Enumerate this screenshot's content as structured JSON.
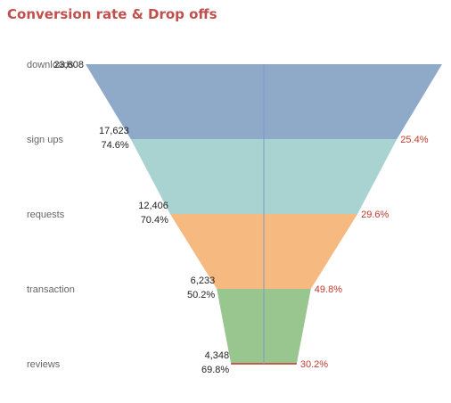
{
  "chart_data": {
    "type": "funnel",
    "title": "Conversion rate & Drop offs",
    "stages": [
      {
        "name": "downloads",
        "value": 23608,
        "value_label": "23,608",
        "conversion": "",
        "drop_off": ""
      },
      {
        "name": "sign ups",
        "value": 17623,
        "value_label": "17,623",
        "conversion": "74.6%",
        "drop_off": "25.4%"
      },
      {
        "name": "requests",
        "value": 12406,
        "value_label": "12,406",
        "conversion": "70.4%",
        "drop_off": "29.6%"
      },
      {
        "name": "transaction",
        "value": 6233,
        "value_label": "6,233",
        "conversion": "50.2%",
        "drop_off": "49.8%"
      },
      {
        "name": "reviews",
        "value": 4348,
        "value_label": "4,348",
        "conversion": "69.8%",
        "drop_off": "30.2%"
      }
    ],
    "colors": {
      "title": "#c0504d",
      "segments": [
        "#8faac9",
        "#a9d3d0",
        "#f6b97f",
        "#99c68f"
      ],
      "drop_off_text": "#c0392b",
      "count_text": "#222222",
      "center_line": "#7a9cc4"
    }
  }
}
